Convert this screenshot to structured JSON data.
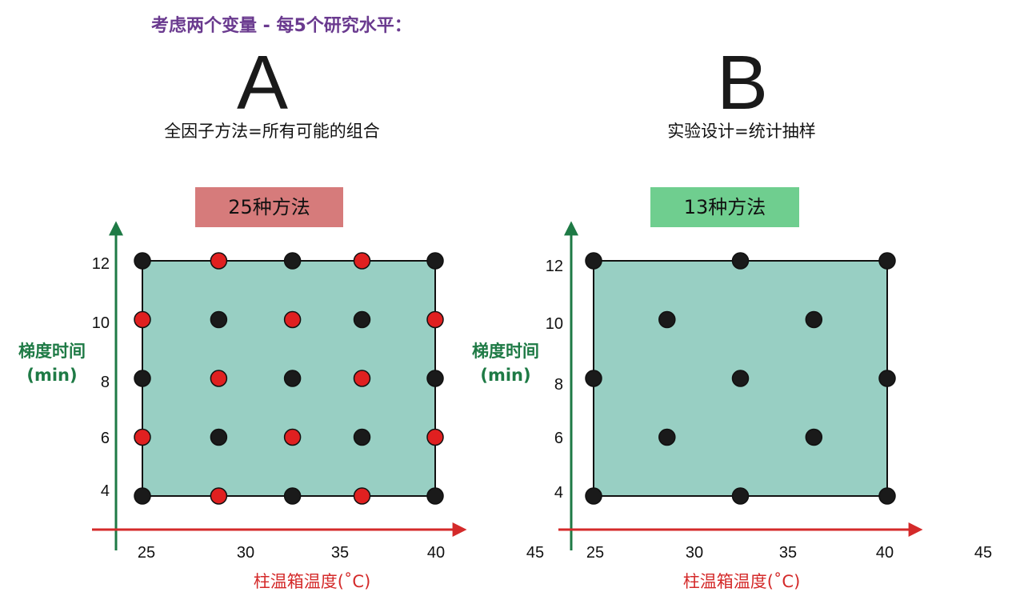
{
  "header": {
    "title": "考虑两个变量 - 每5个研究水平："
  },
  "panels": [
    {
      "letter": "A",
      "subtitle": "全因子方法=所有可能的组合",
      "badge": {
        "label": "25种方法",
        "color": "#d67b7b"
      },
      "y_label_line1": "梯度时间",
      "y_label_line2": "(min)",
      "x_label": "柱温箱温度(˚C)",
      "y_ticks": [
        "12",
        "10",
        "8",
        "6",
        "4"
      ],
      "x_ticks": [
        "25",
        "30",
        "35",
        "40",
        "45"
      ],
      "points": [
        {
          "x": 25,
          "y": 12,
          "color": "black"
        },
        {
          "x": 29.17,
          "y": 12,
          "color": "red"
        },
        {
          "x": 33.2,
          "y": 12,
          "color": "black"
        },
        {
          "x": 37,
          "y": 12,
          "color": "red"
        },
        {
          "x": 41,
          "y": 12,
          "color": "black"
        },
        {
          "x": 25,
          "y": 10,
          "color": "red"
        },
        {
          "x": 29.17,
          "y": 10,
          "color": "black"
        },
        {
          "x": 33.2,
          "y": 10,
          "color": "red"
        },
        {
          "x": 37,
          "y": 10,
          "color": "black"
        },
        {
          "x": 41,
          "y": 10,
          "color": "red"
        },
        {
          "x": 25,
          "y": 8,
          "color": "black"
        },
        {
          "x": 29.17,
          "y": 8,
          "color": "red"
        },
        {
          "x": 33.2,
          "y": 8,
          "color": "black"
        },
        {
          "x": 37,
          "y": 8,
          "color": "red"
        },
        {
          "x": 41,
          "y": 8,
          "color": "black"
        },
        {
          "x": 25,
          "y": 6,
          "color": "red"
        },
        {
          "x": 29.17,
          "y": 6,
          "color": "black"
        },
        {
          "x": 33.2,
          "y": 6,
          "color": "red"
        },
        {
          "x": 37,
          "y": 6,
          "color": "black"
        },
        {
          "x": 41,
          "y": 6,
          "color": "red"
        },
        {
          "x": 25,
          "y": 4,
          "color": "black"
        },
        {
          "x": 29.17,
          "y": 4,
          "color": "red"
        },
        {
          "x": 33.2,
          "y": 4,
          "color": "black"
        },
        {
          "x": 37,
          "y": 4,
          "color": "red"
        },
        {
          "x": 41,
          "y": 4,
          "color": "black"
        }
      ]
    },
    {
      "letter": "B",
      "subtitle": "实验设计=统计抽样",
      "badge": {
        "label": "13种方法",
        "color": "#6fce8f"
      },
      "y_label_line1": "梯度时间",
      "y_label_line2": "(min)",
      "x_label": "柱温箱温度(˚C)",
      "y_ticks": [
        "12",
        "10",
        "8",
        "6",
        "4"
      ],
      "x_ticks": [
        "25",
        "30",
        "35",
        "40",
        "45"
      ],
      "points": [
        {
          "x": 25,
          "y": 12,
          "color": "black"
        },
        {
          "x": 33,
          "y": 12,
          "color": "black"
        },
        {
          "x": 41,
          "y": 12,
          "color": "black"
        },
        {
          "x": 29,
          "y": 10,
          "color": "black"
        },
        {
          "x": 37,
          "y": 10,
          "color": "black"
        },
        {
          "x": 25,
          "y": 8,
          "color": "black"
        },
        {
          "x": 33,
          "y": 8,
          "color": "black"
        },
        {
          "x": 41,
          "y": 8,
          "color": "black"
        },
        {
          "x": 29,
          "y": 6,
          "color": "black"
        },
        {
          "x": 37,
          "y": 6,
          "color": "black"
        },
        {
          "x": 25,
          "y": 4,
          "color": "black"
        },
        {
          "x": 33,
          "y": 4,
          "color": "black"
        },
        {
          "x": 41,
          "y": 4,
          "color": "black"
        }
      ]
    }
  ],
  "colors": {
    "region_fill": "#98cfc3",
    "y_axis": "#1e7a45",
    "x_axis": "#d42a2a",
    "point_black": "#1a1a1a",
    "point_red": "#e02020"
  }
}
